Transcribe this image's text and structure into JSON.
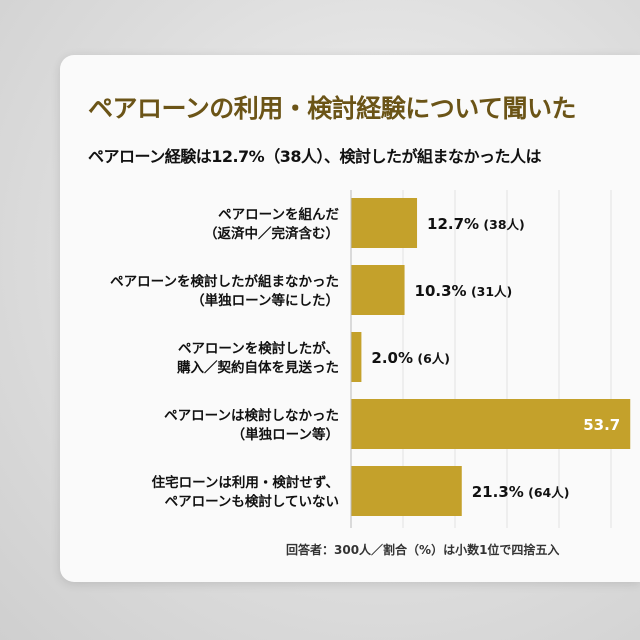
{
  "colors": {
    "bar": "#C4A12B",
    "title": "#6B5417",
    "grid": "#e2e2e2",
    "value_inside": "#ffffff",
    "value_outside": "#111111"
  },
  "title": "ペアローンの利用・検討経験について聞いた",
  "subtitle": "ペアローン経験は12.7%（38人）、検討したが組まなかった人は",
  "note": "回答者：300人／割合（%）は小数1位で四捨五入",
  "chart_data": {
    "type": "bar",
    "orientation": "horizontal",
    "title": "ペアローンの利用・検討経験について聞いた",
    "categories": [
      [
        "ペアローンを組んだ",
        "（返済中／完済含む）"
      ],
      [
        "ペアローンを検討したが組まなかった",
        "（単独ローン等にした）"
      ],
      [
        "ペアローンを検討したが、",
        "購入／契約自体を見送った"
      ],
      [
        "ペアローンは検討しなかった",
        "（単独ローン等）"
      ],
      [
        "住宅ローンは利用・検討せず、",
        "ペアローンも検討していない"
      ]
    ],
    "values": [
      12.7,
      10.3,
      2.0,
      53.7,
      21.3
    ],
    "data_labels": [
      "12.7%",
      "10.3%",
      "2.0%",
      "53.7",
      "21.3%"
    ],
    "count_labels": [
      "(38人)",
      "(31人)",
      "(6人)",
      "",
      "(64人)"
    ],
    "grid": true,
    "xlim": [
      0,
      60
    ]
  }
}
